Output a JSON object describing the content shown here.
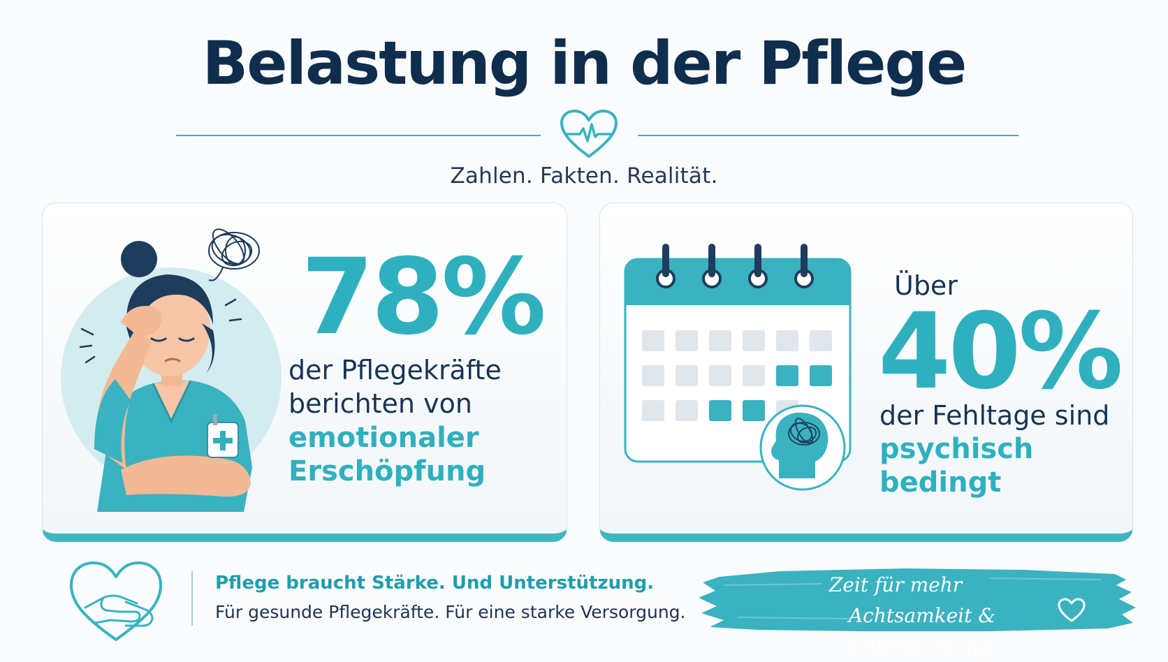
{
  "header": {
    "title": "Belastung in der Pflege",
    "subtitle": "Zahlen. Fakten. Realität.",
    "icon": "heart-pulse-icon"
  },
  "stat_cards": [
    {
      "value": "78%",
      "description_lines": [
        "der Pflegekräfte",
        "berichten von"
      ],
      "accent_lines": [
        "emotionaler",
        "Erschöpfung"
      ],
      "illustration": "exhausted-nurse-illustration"
    },
    {
      "prefix": "Über",
      "value": "40%",
      "description_lines": [
        "der Fehltage sind"
      ],
      "accent_lines": [
        "psychisch",
        "bedingt"
      ],
      "illustration": "calendar-with-stressed-head-illustration"
    }
  ],
  "footer": {
    "icon": "heart-hands-icon",
    "headline": "Pflege braucht Stärke. Und Unterstützung.",
    "tagline": "Für gesunde Pflegekräfte. Für eine starke Versorgung.",
    "banner_line1": "Zeit für mehr",
    "banner_line2": "Achtsamkeit & Unterstützung.",
    "banner_icon": "heart-outline-icon"
  },
  "colors": {
    "navy": "#0f2d4d",
    "teal": "#2fb0bf",
    "teal_light": "#d3ecf0",
    "background": "#fbfcfd"
  }
}
